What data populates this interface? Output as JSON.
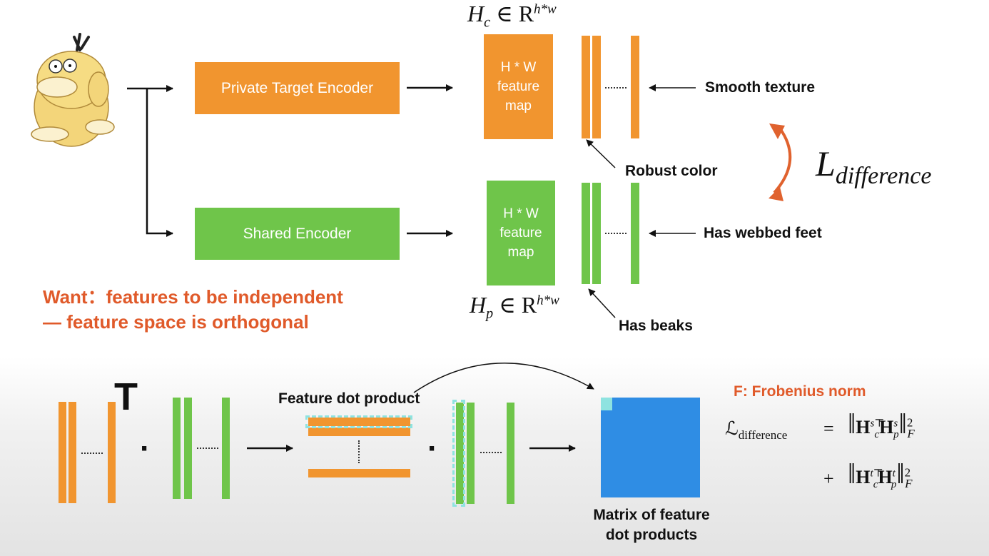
{
  "top": {
    "private_encoder_label": "Private Target Encoder",
    "shared_encoder_label": "Shared Encoder",
    "feature_map_line1": "H * W",
    "feature_map_line2": "feature",
    "feature_map_line3": "map",
    "hc_label": "H",
    "hc_sub": "c",
    "hc_set": " ∈ R",
    "hc_sup": "h*w",
    "hp_label": "H",
    "hp_sub": "p",
    "hp_set": " ∈ R",
    "hp_sup": "h*w",
    "annotations": {
      "smooth_texture": "Smooth texture",
      "robust_color": "Robust color",
      "has_webbed_feet": "Has webbed feet",
      "has_beaks": "Has beaks"
    },
    "loss_main": "L",
    "loss_sub": "difference",
    "want_line1": "Want：features to be independent",
    "want_line2": "— feature space is orthogonal"
  },
  "bottom": {
    "transpose_symbol": "T",
    "dot_symbol": "·",
    "feature_dot_product_label": "Feature dot product",
    "matrix_label_line1": "Matrix of feature",
    "matrix_label_line2": "dot products",
    "frobenius_title": "F: Frobenius norm",
    "equation": {
      "lhs": "ℒ",
      "lhs_sub": "difference",
      "equals": "=",
      "plus": "+",
      "term1_left": "H",
      "term1_left_sub": "c",
      "term1_left_sup": "s⊤",
      "term1_right": "H",
      "term1_right_sub": "p",
      "term1_right_sup": "s",
      "term2_left": "H",
      "term2_left_sub": "c",
      "term2_left_sup": "t⊤",
      "term2_right": "H",
      "term2_right_sub": "p",
      "term2_right_sup": "t",
      "power": "2",
      "norm_sub": "F"
    }
  },
  "colors": {
    "orange": "#f1952f",
    "green": "#6fc54a",
    "red_text": "#e05a2a",
    "loss_arrow": "#e0622e",
    "matrix_blue": "#2f8de4",
    "highlight_cyan": "#8ee3e0"
  }
}
